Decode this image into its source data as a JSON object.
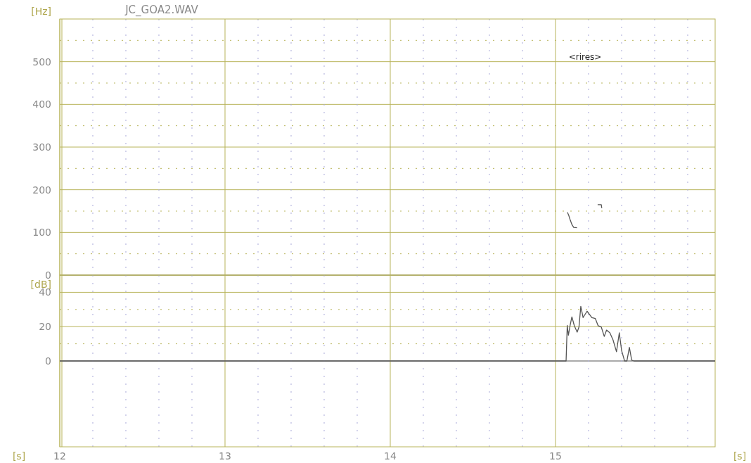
{
  "chart_data": [
    {
      "type": "line",
      "title": "JC_GOA2.WAV",
      "ylabel": "[Hz]",
      "xlim": [
        12,
        15.966
      ],
      "ylim": [
        0,
        600
      ],
      "xticks": [
        12,
        {
          "value": 12.2,
          "label": null
        },
        {
          "value": 12.4,
          "label": null
        },
        {
          "value": 12.6,
          "label": null
        },
        {
          "value": 12.8,
          "label": null
        },
        13,
        {
          "value": 13.2,
          "label": null
        },
        {
          "value": 13.4,
          "label": null
        },
        {
          "value": 13.6,
          "label": null
        },
        {
          "value": 13.8,
          "label": null
        },
        14,
        {
          "value": 14.2,
          "label": null
        },
        {
          "value": 14.4,
          "label": null
        },
        {
          "value": 14.6,
          "label": null
        },
        {
          "value": 14.8,
          "label": null
        },
        15,
        {
          "value": 15.2,
          "label": null
        },
        {
          "value": 15.4,
          "label": null
        },
        {
          "value": 15.6,
          "label": null
        },
        {
          "value": 15.8,
          "label": null
        }
      ],
      "yticks": [
        0,
        {
          "value": 50,
          "label": null
        },
        100,
        {
          "value": 150,
          "label": null
        },
        200,
        {
          "value": 250,
          "label": null
        },
        300,
        {
          "value": 350,
          "label": null
        },
        400,
        {
          "value": 450,
          "label": null
        },
        500,
        {
          "value": 550,
          "label": null
        }
      ],
      "tick_labels": "y",
      "grid": true,
      "marker": "none",
      "line_style": "solid",
      "annotations": [
        "<rires>"
      ],
      "series": [
        {
          "color": "#555555",
          "x": [
            15.072,
            15.08,
            15.09,
            15.1,
            15.11,
            15.13,
            15.2,
            15.255,
            15.277,
            15.28
          ],
          "values": [
            147,
            140,
            128,
            118,
            112,
            111,
            null,
            165,
            165,
            157
          ]
        }
      ]
    },
    {
      "type": "line",
      "ylabel": "[dB]",
      "xlabel": "[s]",
      "xlim": [
        12,
        15.966
      ],
      "ylim": [
        -50,
        50
      ],
      "xticks": [
        12,
        {
          "value": 12.2,
          "label": null
        },
        {
          "value": 12.4,
          "label": null
        },
        {
          "value": 12.6,
          "label": null
        },
        {
          "value": 12.8,
          "label": null
        },
        13,
        {
          "value": 13.2,
          "label": null
        },
        {
          "value": 13.4,
          "label": null
        },
        {
          "value": 13.6,
          "label": null
        },
        {
          "value": 13.8,
          "label": null
        },
        14,
        {
          "value": 14.2,
          "label": null
        },
        {
          "value": 14.4,
          "label": null
        },
        {
          "value": 14.6,
          "label": null
        },
        {
          "value": 14.8,
          "label": null
        },
        15,
        {
          "value": 15.2,
          "label": null
        },
        {
          "value": 15.4,
          "label": null
        },
        {
          "value": 15.6,
          "label": null
        },
        {
          "value": 15.8,
          "label": null
        }
      ],
      "yticks": [
        0,
        {
          "value": 10,
          "label": null
        },
        20,
        {
          "value": 30,
          "label": null
        },
        40
      ],
      "grid": true,
      "marker": "none",
      "line_style": "solid",
      "series": [
        {
          "color": "#555555",
          "x": [
            12,
            15.064,
            15.071,
            15.078,
            15.088,
            15.099,
            15.114,
            15.131,
            15.142,
            15.153,
            15.167,
            15.191,
            15.22,
            15.241,
            15.258,
            15.277,
            15.295,
            15.309,
            15.329,
            15.348,
            15.369,
            15.386,
            15.4,
            15.418,
            15.432,
            15.447,
            15.461,
            15.475,
            15.966
          ],
          "values": [
            0,
            0,
            20.7,
            15,
            20.5,
            25.7,
            20.5,
            16.8,
            19.8,
            31.8,
            25.3,
            29,
            25.3,
            24.7,
            20.5,
            19.8,
            14.3,
            18,
            16.4,
            12.3,
            5.4,
            16.4,
            6.1,
            0,
            0,
            7.9,
            0.5,
            0,
            0
          ]
        }
      ]
    }
  ]
}
